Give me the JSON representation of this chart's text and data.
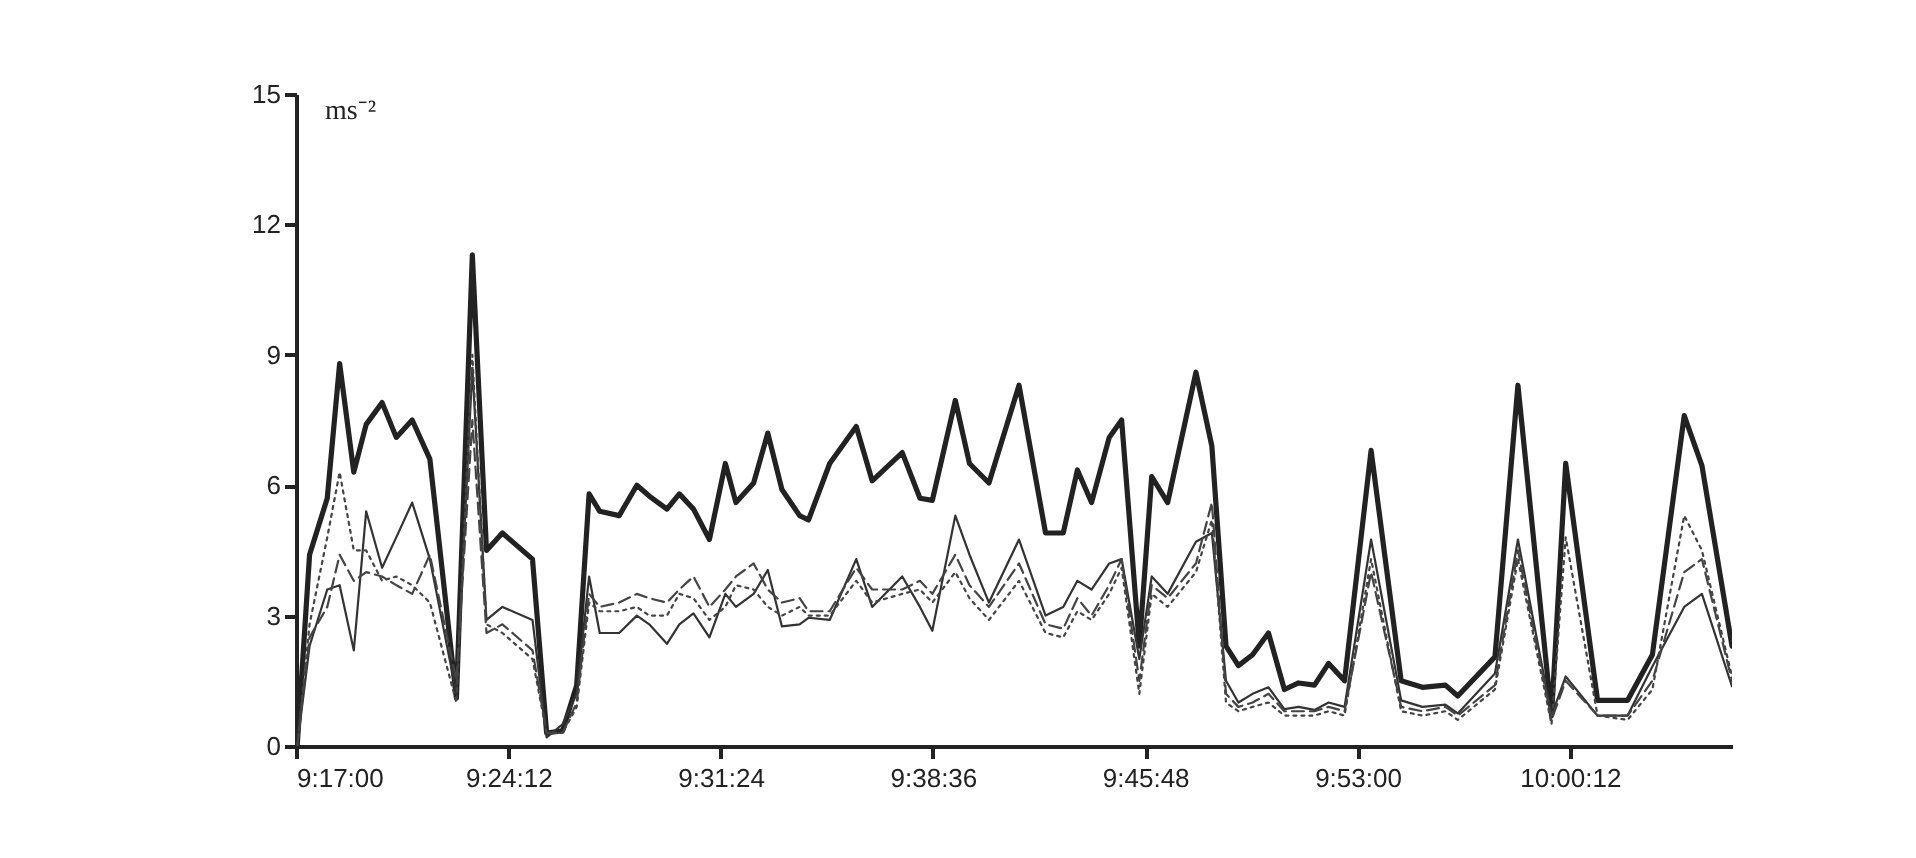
{
  "chart_data": {
    "type": "line",
    "ylabel": "ms⁻²",
    "xlim": [
      9.28333,
      10.095
    ],
    "ylim": [
      0,
      15
    ],
    "yticks": [
      0,
      3,
      6,
      9,
      12,
      15
    ],
    "xticks": [
      {
        "value": 9.28333,
        "label": "9:17:00"
      },
      {
        "value": 9.40333,
        "label": "9:24:12"
      },
      {
        "value": 9.52333,
        "label": "9:31:24"
      },
      {
        "value": 9.64333,
        "label": "9:38:36"
      },
      {
        "value": 9.76333,
        "label": "9:45:48"
      },
      {
        "value": 9.88333,
        "label": "9:53:00"
      },
      {
        "value": 10.00333,
        "label": "10:00:12"
      }
    ],
    "grid": false,
    "marker": "none",
    "x": [
      9.284,
      9.291,
      9.301,
      9.308,
      9.316,
      9.323,
      9.332,
      9.34,
      9.349,
      9.359,
      9.374,
      9.383,
      9.391,
      9.4,
      9.417,
      9.425,
      9.434,
      9.442,
      9.449,
      9.455,
      9.466,
      9.476,
      9.483,
      9.493,
      9.5,
      9.508,
      9.517,
      9.526,
      9.532,
      9.542,
      9.55,
      9.558,
      9.568,
      9.573,
      9.585,
      9.6,
      9.609,
      9.626,
      9.636,
      9.643,
      9.656,
      9.664,
      9.675,
      9.692,
      9.707,
      9.717,
      9.725,
      9.733,
      9.743,
      9.75,
      9.76,
      9.767,
      9.776,
      9.792,
      9.801,
      9.809,
      9.816,
      9.824,
      9.833,
      9.842,
      9.85,
      9.859,
      9.867,
      9.876,
      9.891,
      9.908,
      9.92,
      9.933,
      9.94,
      9.961,
      9.974,
      9.993,
      10.001,
      10.019,
      10.036,
      10.05,
      10.068,
      10.078,
      10.095
    ],
    "series": [
      {
        "color": "#222222",
        "line_style": "solid",
        "values": [
          0,
          4.4,
          5.7,
          8.8,
          6.3,
          7.4,
          7.9,
          7.1,
          7.5,
          6.6,
          1.1,
          11.3,
          4.5,
          4.9,
          4.3,
          0.3,
          0.35,
          1.4,
          5.8,
          5.4,
          5.3,
          6.0,
          5.75,
          5.45,
          5.8,
          5.45,
          4.75,
          6.5,
          5.6,
          6.05,
          7.2,
          5.9,
          5.3,
          5.2,
          6.5,
          7.35,
          6.1,
          6.75,
          5.7,
          5.65,
          7.95,
          6.5,
          6.05,
          8.3,
          4.9,
          4.9,
          6.35,
          5.6,
          7.1,
          7.5,
          2.3,
          6.2,
          5.6,
          8.6,
          6.9,
          2.3,
          1.85,
          2.1,
          2.6,
          1.3,
          1.45,
          1.4,
          1.9,
          1.5,
          6.8,
          1.5,
          1.35,
          1.4,
          1.15,
          2.05,
          8.3,
          0.7,
          6.5,
          1.05,
          1.05,
          2.1,
          7.6,
          6.45,
          2.3
        ]
      },
      {
        "color": "#333333",
        "line_style": "solid",
        "values": [
          0,
          2.3,
          3.6,
          3.7,
          2.2,
          5.4,
          4.1,
          4.8,
          5.6,
          4.3,
          1.2,
          8.7,
          2.9,
          3.2,
          2.9,
          0.2,
          0.5,
          1.2,
          3.9,
          2.6,
          2.6,
          3.0,
          2.8,
          2.35,
          2.8,
          3.05,
          2.5,
          3.5,
          3.2,
          3.5,
          4.05,
          2.75,
          2.8,
          2.95,
          2.9,
          4.3,
          3.2,
          3.9,
          3.2,
          2.65,
          5.3,
          4.4,
          3.3,
          4.75,
          3.0,
          3.2,
          3.8,
          3.6,
          4.2,
          4.3,
          2.0,
          3.9,
          3.5,
          4.7,
          4.9,
          1.5,
          1.0,
          1.2,
          1.35,
          0.85,
          0.9,
          0.83,
          1.0,
          0.9,
          4.75,
          1.05,
          0.9,
          0.95,
          0.75,
          1.67,
          4.75,
          0.7,
          1.6,
          0.7,
          0.7,
          1.83,
          3.2,
          3.5,
          1.37
        ]
      },
      {
        "color": "#444444",
        "line_style": "dashed",
        "values": [
          0,
          2.5,
          3.2,
          4.4,
          3.8,
          4.0,
          3.9,
          3.7,
          3.5,
          4.4,
          1.5,
          7.5,
          2.6,
          2.8,
          2.2,
          0.3,
          0.3,
          1.0,
          3.5,
          3.2,
          3.3,
          3.5,
          3.4,
          3.3,
          3.6,
          3.9,
          3.2,
          3.6,
          3.9,
          4.2,
          3.6,
          3.3,
          3.4,
          3.1,
          3.1,
          4.1,
          3.6,
          3.6,
          3.8,
          3.5,
          4.4,
          3.7,
          3.2,
          4.2,
          2.8,
          2.7,
          3.4,
          3.0,
          3.7,
          4.3,
          1.5,
          3.7,
          3.4,
          4.2,
          5.6,
          1.2,
          0.9,
          1.0,
          1.2,
          0.8,
          0.8,
          0.8,
          0.9,
          0.8,
          4.0,
          0.9,
          0.8,
          0.9,
          0.7,
          1.4,
          4.5,
          0.6,
          1.5,
          0.7,
          0.7,
          1.5,
          4.0,
          4.3,
          1.5
        ]
      },
      {
        "color": "#444444",
        "line_style": "dotted",
        "values": [
          0,
          2.8,
          4.8,
          6.3,
          4.5,
          4.5,
          3.8,
          3.9,
          3.7,
          3.3,
          1.0,
          9.0,
          2.8,
          2.6,
          2.0,
          0.3,
          0.3,
          0.9,
          3.3,
          3.1,
          3.1,
          3.2,
          3.0,
          3.0,
          3.5,
          3.4,
          2.9,
          3.2,
          3.7,
          3.6,
          3.2,
          3.0,
          3.2,
          3.0,
          3.0,
          3.8,
          3.3,
          3.5,
          3.6,
          3.3,
          4.0,
          3.4,
          2.9,
          3.8,
          2.6,
          2.5,
          3.1,
          2.9,
          3.5,
          4.1,
          1.2,
          3.5,
          3.2,
          4.0,
          5.2,
          1.0,
          0.8,
          0.9,
          1.0,
          0.7,
          0.7,
          0.7,
          0.8,
          0.7,
          4.3,
          0.8,
          0.7,
          0.8,
          0.6,
          1.3,
          4.3,
          0.5,
          4.8,
          0.7,
          0.6,
          1.3,
          5.3,
          4.5,
          1.6
        ]
      }
    ]
  }
}
